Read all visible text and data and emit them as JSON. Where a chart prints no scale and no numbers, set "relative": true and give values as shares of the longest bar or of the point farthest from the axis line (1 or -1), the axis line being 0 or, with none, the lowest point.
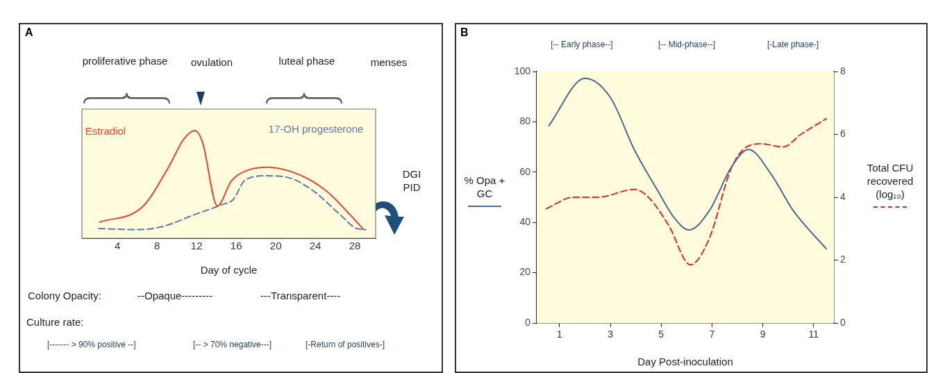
{
  "chart_data": [
    {
      "type": "line",
      "title": "A",
      "xlabel": "Day of cycle",
      "relative": true,
      "xlim": [
        0.4,
        30.1
      ],
      "xticks": [
        4,
        8,
        12,
        16,
        20,
        24,
        28
      ],
      "grid": false,
      "legend": false,
      "marker": "none",
      "annotations": [
        "proliferative phase",
        "ovulation",
        "luteal phase",
        "menses",
        "DGI PID",
        "Colony Opacity:",
        "--Opaque---------",
        "---Transparent----",
        "Culture rate:",
        "[------- > 90% positive  --]",
        "[-- > 70% negative---]",
        "[-Return of positives-]"
      ],
      "series": [
        {
          "name": "Estradiol",
          "color": "#e8432d",
          "line_style": "solid",
          "x": [
            2.2,
            6.5,
            9.1,
            10.7,
            11.8,
            12.6,
            14.1,
            15.5,
            17.1,
            19.2,
            22.4,
            25.1,
            27.5,
            28.9
          ],
          "values": [
            0.15,
            0.29,
            0.65,
            0.92,
            1.0,
            0.89,
            0.3,
            0.53,
            0.63,
            0.66,
            0.59,
            0.44,
            0.22,
            0.08
          ]
        },
        {
          "name": "17-OH progesterone",
          "color": "#5b7b9c",
          "line_style": "dashed",
          "x": [
            2.1,
            6.0,
            8.6,
            11.8,
            14.5,
            15.7,
            16.9,
            19.0,
            21.4,
            23.8,
            26.5,
            28.2,
            29.1
          ],
          "values": [
            0.09,
            0.08,
            0.11,
            0.22,
            0.31,
            0.36,
            0.54,
            0.58,
            0.56,
            0.44,
            0.22,
            0.09,
            0.08
          ]
        }
      ]
    },
    {
      "type": "line",
      "title": "B",
      "xlabel": "Day Post-inoculation",
      "ylabel": "% Opa + GC",
      "y2label": "Total CFU recovered (log₁₀)",
      "xlim": [
        0.1,
        11.8
      ],
      "xticks": [
        1,
        3,
        5,
        7,
        9,
        11
      ],
      "ylim": [
        0,
        100
      ],
      "yticks": [
        0,
        20,
        40,
        60,
        80,
        100
      ],
      "y2lim": [
        0,
        8
      ],
      "y2ticks": [
        0,
        2,
        4,
        6,
        8
      ],
      "grid": false,
      "legend": false,
      "marker": "none",
      "annotations": [
        "[-- Early  phase--]",
        "[-- Mid-phase--]",
        "[-Late phase-]"
      ],
      "series": [
        {
          "color": "#4a6a8c",
          "line_style": "solid",
          "x": [
            0.58,
            2.0,
            3.0,
            3.94,
            4.9,
            5.5,
            6.1,
            6.9,
            7.75,
            8.44,
            9.34,
            10.2,
            11.5
          ],
          "values": [
            78.5,
            97.3,
            89.7,
            69,
            52,
            42,
            37,
            44.7,
            61.7,
            69,
            59,
            44.7,
            29.5
          ]
        },
        {
          "color": "#e02828",
          "line_style": "dashed",
          "axis": "y2",
          "x": [
            0.48,
            1.54,
            2.5,
            3.94,
            4.5,
            5.3,
            6.15,
            6.9,
            7.75,
            8.36,
            8.96,
            9.8,
            10.5,
            11.5
          ],
          "values": [
            3.64,
            4.0,
            4.0,
            4.25,
            4.0,
            3.1,
            1.85,
            2.7,
            4.9,
            5.6,
            5.7,
            5.6,
            6.0,
            6.5
          ]
        }
      ]
    }
  ]
}
